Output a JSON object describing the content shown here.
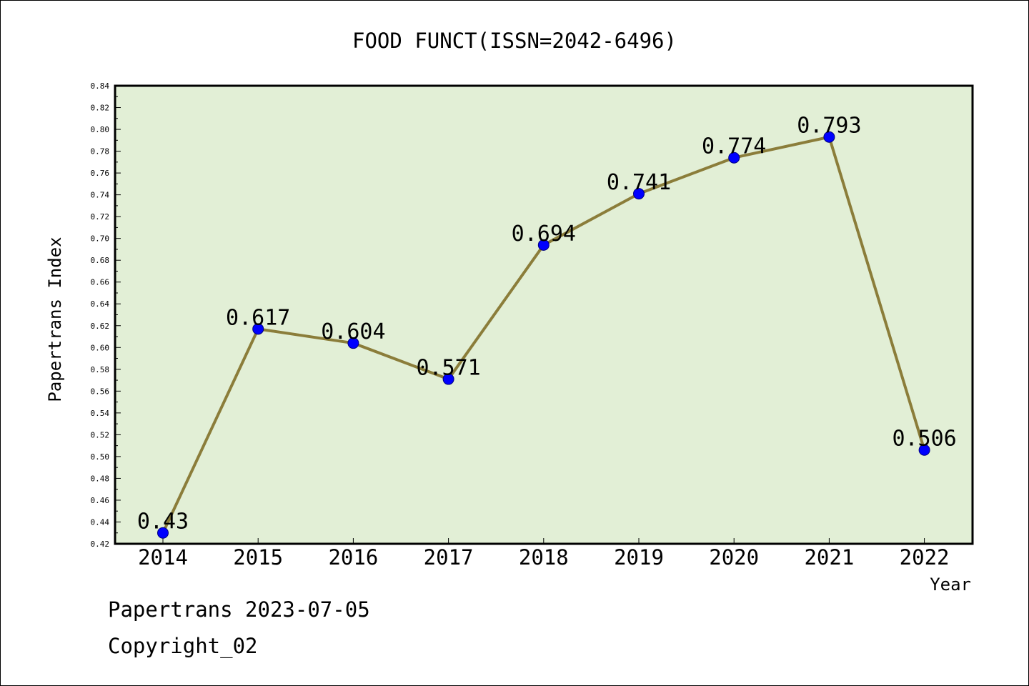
{
  "chart_data": {
    "type": "line",
    "title": "FOOD FUNCT(ISSN=2042-6496)",
    "xlabel": "Year",
    "ylabel": "Papertrans Index",
    "categories": [
      "2014",
      "2015",
      "2016",
      "2017",
      "2018",
      "2019",
      "2020",
      "2021",
      "2022"
    ],
    "series": [
      {
        "values": [
          0.43,
          0.617,
          0.604,
          0.571,
          0.694,
          0.741,
          0.774,
          0.793,
          0.506
        ],
        "data_labels": [
          "0.43",
          "0.617",
          "0.604",
          "0.571",
          "0.694",
          "0.741",
          "0.774",
          "0.793",
          "0.506"
        ]
      }
    ],
    "ylim": [
      0.42,
      0.84
    ],
    "yticks": [
      "0.42",
      "0.44",
      "0.46",
      "0.48",
      "0.50",
      "0.52",
      "0.54",
      "0.56",
      "0.58",
      "0.60",
      "0.62",
      "0.64",
      "0.66",
      "0.68",
      "0.70",
      "0.72",
      "0.74",
      "0.76",
      "0.78",
      "0.80",
      "0.82",
      "0.84"
    ],
    "grid": false,
    "colors": {
      "plot_background": "#e2efd6",
      "line": "#8b7d3a",
      "marker_fill": "#0000ff",
      "marker_edge": "#000080"
    }
  },
  "footer": {
    "line1": "Papertrans 2023-07-05",
    "line2": "Copyright_02"
  }
}
